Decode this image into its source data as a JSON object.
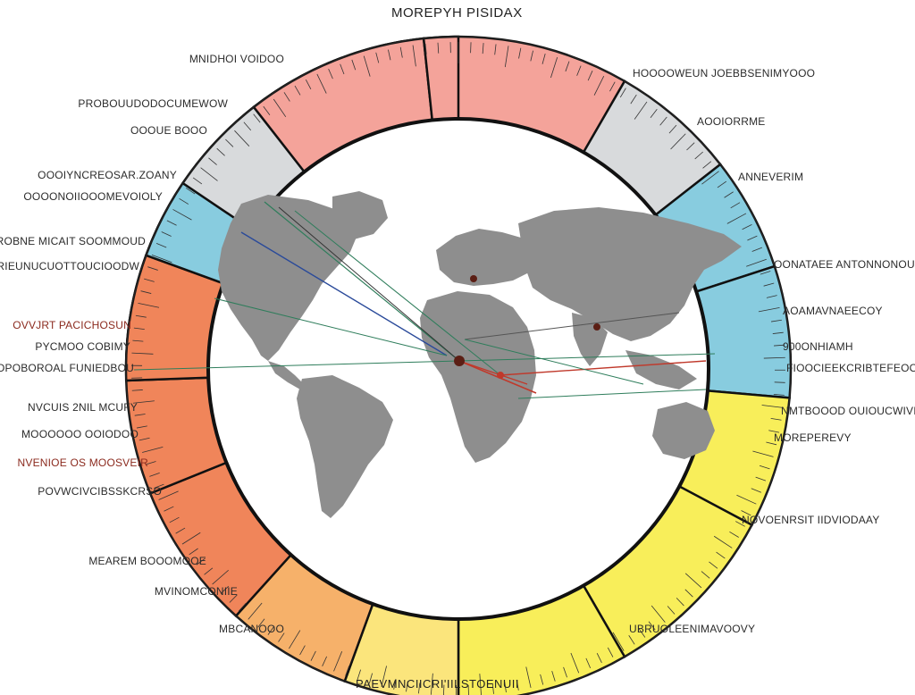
{
  "title": "MOREPYH PISIDAX",
  "footer": "PAEVMNCIICRI'IILSTOENUII",
  "colors": {
    "red": "#f4a39a",
    "grey": "#d8dadc",
    "blue": "#88ccdf",
    "orange": "#f0855a",
    "lightorange": "#f6b16a",
    "paleyellow": "#fbe57c",
    "yellow": "#f8ee5a",
    "map": "#8e8e8e",
    "ring_stroke": "#111111"
  },
  "labels_left": [
    "MNIDHOI VOIDOO",
    "PROBOUUDODOCUMEWOW",
    "OOOUE BOOO",
    "OOOIYNCREOSAR.ZOANY",
    "OOOONOIIOOOMEVOIOLY",
    "FROBNE MICAIT SOOMMOUD",
    "PRIEUNUCUOTTOUCIOODW",
    "OVVJRT PACICHOSUN",
    "PYCMOO COBIMY",
    "OPOBOROAL FUNIEDBOU",
    "NVCUIS 2NIL MCUFY",
    "MOOOOOO OOIODOO",
    "NVENIOE OS MOOSVEIR",
    "POVWCIVCIBSSKCRSO",
    "MEAREM BOOOMOOE",
    "MVINOMCONIIE",
    "MBCANOOO"
  ],
  "labels_right": [
    "HOOOOWEUN JOEBBSENIMYOOO",
    "AOOIORRME",
    "ANNEVERIM",
    "OONATAEE ANTONNONOUUT",
    "AOAMAVNAEECOY",
    "900ONHIAMH",
    "FIOOCIEEKCRIBTEFEOOR",
    "NMTBOOOD OUIOUCWIVIU",
    "MOREPEREVY",
    "NOVOENRSIT IIDVIODAAY",
    "UBRUOLEENIMAVOOVY"
  ]
}
